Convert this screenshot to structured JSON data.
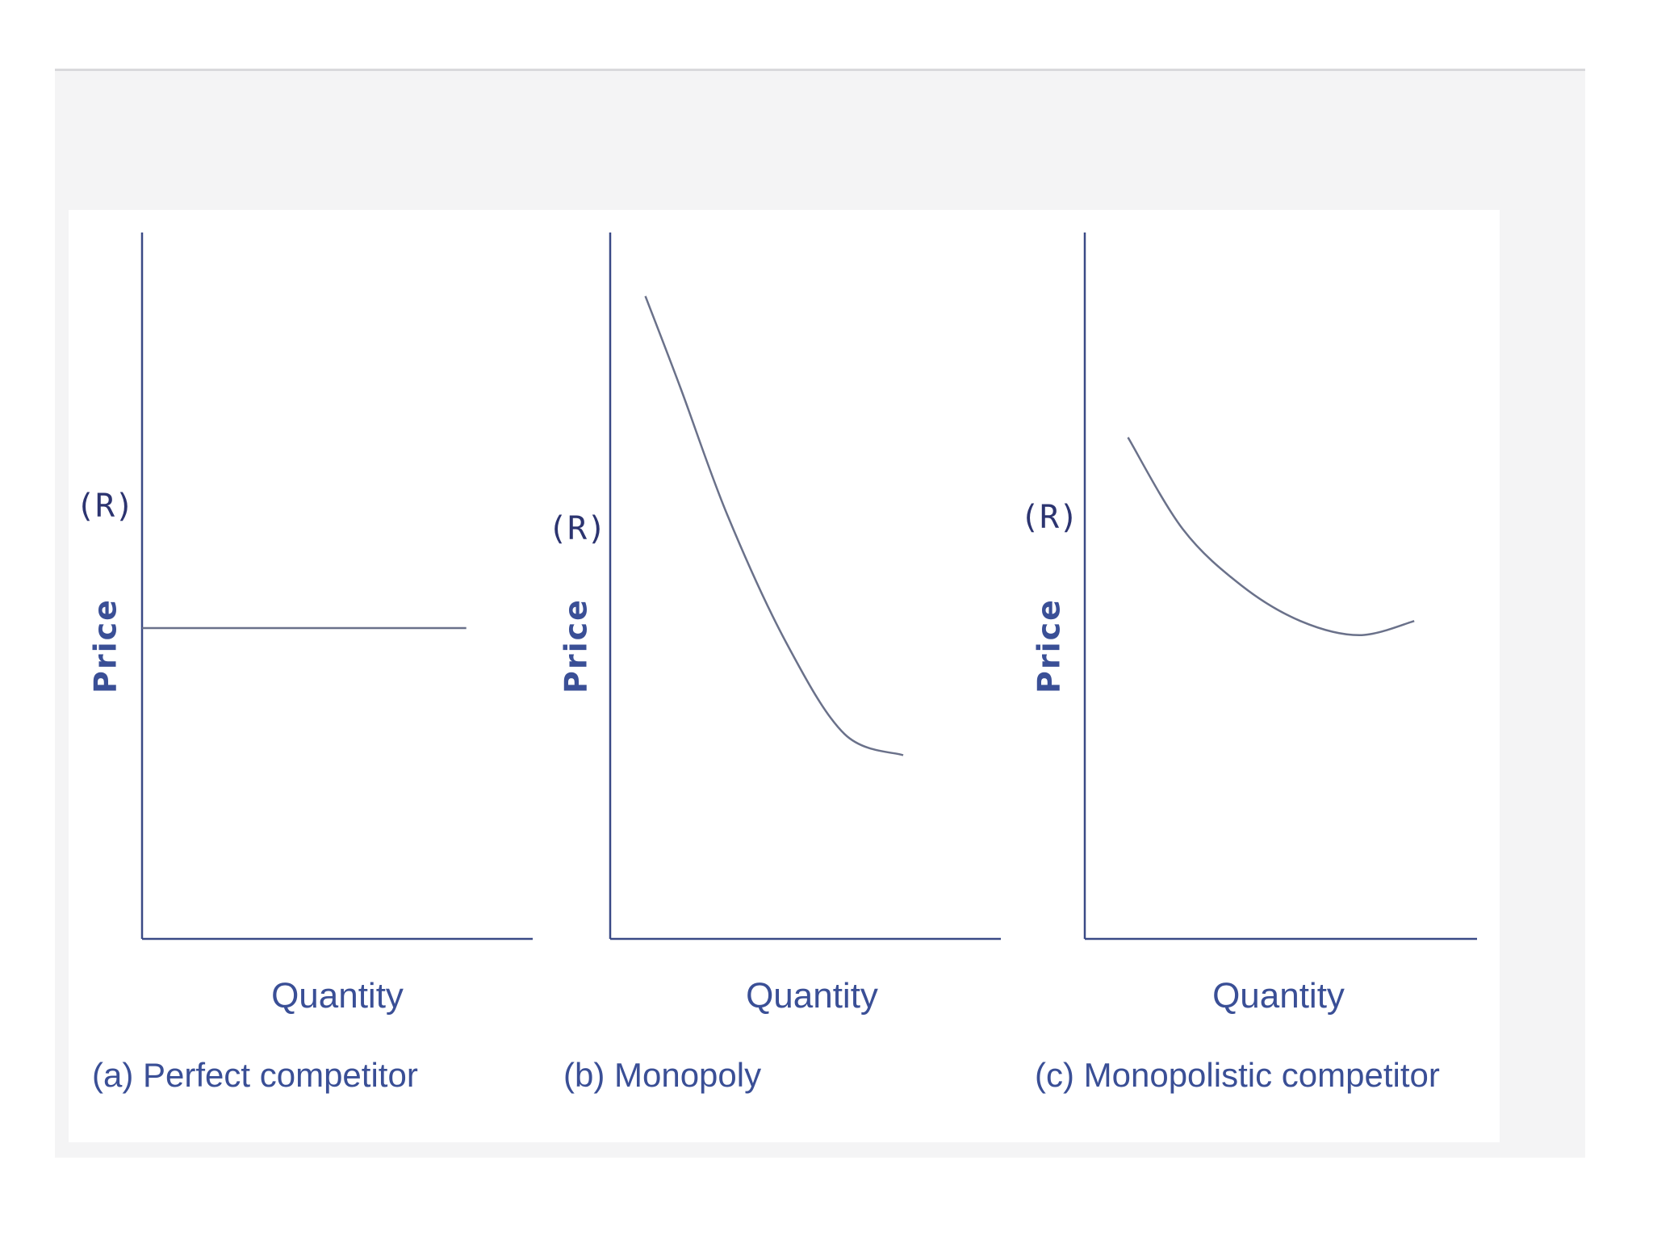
{
  "chart_data": [
    {
      "type": "line",
      "caption": "(a) Perfect competitor",
      "xlabel": "Quantity",
      "ylabel": "Price",
      "ylabel_unit": "(R)",
      "shape": "horizontal",
      "series": [
        {
          "x": [
            0,
            0.83
          ],
          "y": [
            0.44,
            0.44
          ]
        }
      ]
    },
    {
      "type": "line",
      "caption": "(b) Monopoly",
      "xlabel": "Quantity",
      "ylabel": "Price",
      "ylabel_unit": "(R)",
      "shape": "downward-convex",
      "series": [
        {
          "x": [
            0.09,
            0.18,
            0.3,
            0.45,
            0.6,
            0.75
          ],
          "y": [
            0.91,
            0.78,
            0.6,
            0.42,
            0.29,
            0.26
          ]
        }
      ]
    },
    {
      "type": "line",
      "caption": "(c) Monopolistic competitor",
      "xlabel": "Quantity",
      "ylabel": "Price",
      "ylabel_unit": "(R)",
      "shape": "downward-convex-flat",
      "series": [
        {
          "x": [
            0.11,
            0.25,
            0.4,
            0.55,
            0.7,
            0.84
          ],
          "y": [
            0.71,
            0.58,
            0.5,
            0.45,
            0.43,
            0.45
          ]
        }
      ]
    }
  ]
}
